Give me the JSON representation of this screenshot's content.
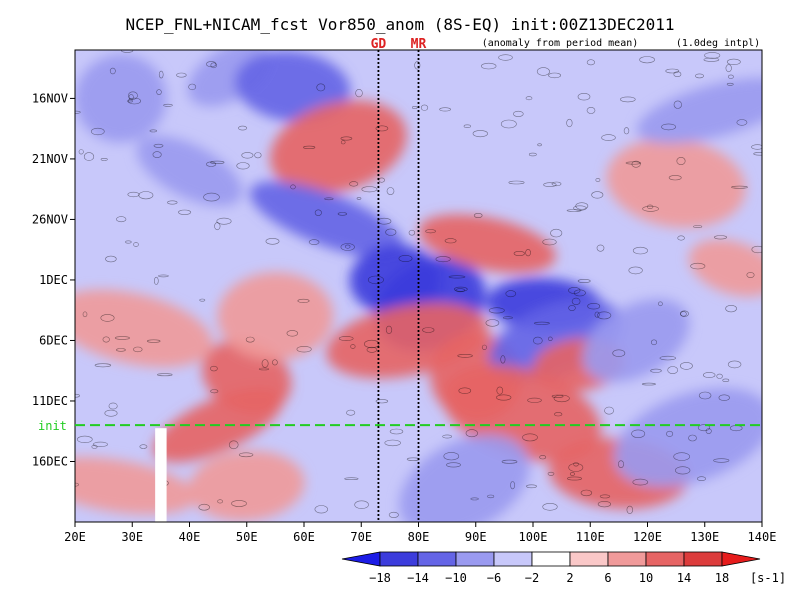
{
  "chart_data": {
    "type": "heatmap",
    "title": "NCEP_FNL+NICAM_fcst Vor850_anom (8S-EQ) init:00Z13DEC2011",
    "subtitle_left": "(anomaly from period mean)",
    "subtitle_right": "(1.0deg intpl)",
    "x_axis": {
      "range": [
        20,
        140
      ],
      "ticks": [
        20,
        30,
        40,
        50,
        60,
        70,
        80,
        90,
        100,
        110,
        120,
        130,
        140
      ],
      "tick_labels": [
        "20E",
        "30E",
        "40E",
        "50E",
        "60E",
        "70E",
        "80E",
        "90E",
        "100E",
        "110E",
        "120E",
        "130E",
        "140E"
      ]
    },
    "y_axis": {
      "range_days_from_start": [
        0,
        39
      ],
      "start": "12NOV",
      "ticks": [
        {
          "label": "16NOV",
          "date": "16NOV"
        },
        {
          "label": "21NOV",
          "date": "21NOV"
        },
        {
          "label": "26NOV",
          "date": "26NOV"
        },
        {
          "label": "1DEC",
          "date": "1DEC"
        },
        {
          "label": "6DEC",
          "date": "6DEC"
        },
        {
          "label": "11DEC",
          "date": "11DEC"
        },
        {
          "label": "16DEC",
          "date": "16DEC"
        }
      ]
    },
    "init_line": {
      "label": "init",
      "date": "13DEC",
      "color": "#22cc22"
    },
    "vertical_markers": [
      {
        "label": "GD",
        "lon": 73
      },
      {
        "label": "MR",
        "lon": 80
      }
    ],
    "colorbar": {
      "unit": "[s-1]",
      "levels": [
        -18,
        -14,
        -10,
        -6,
        -2,
        2,
        6,
        10,
        14,
        18
      ],
      "level_labels": [
        "−18",
        "−14",
        "−10",
        "−6",
        "−2",
        "2",
        "6",
        "10",
        "14",
        "18"
      ],
      "colors": [
        "#1c1ce6",
        "#3c3cdc",
        "#6464e6",
        "#9a9af0",
        "#c8c8fa",
        "#ffffff",
        "#fac8c8",
        "#f09a9a",
        "#e66464",
        "#dc3c3c",
        "#e61c1c"
      ]
    },
    "missing_band_lon": [
      34,
      36
    ],
    "blobs": [
      {
        "lon": 47,
        "day": 2,
        "value": -9
      },
      {
        "lon": 58,
        "day": 3,
        "value": -12
      },
      {
        "lon": 66,
        "day": 8,
        "value": 13
      },
      {
        "lon": 64,
        "day": 14,
        "value": -11
      },
      {
        "lon": 76,
        "day": 19,
        "value": -15
      },
      {
        "lon": 82,
        "day": 21,
        "value": -17
      },
      {
        "lon": 92,
        "day": 16,
        "value": 12
      },
      {
        "lon": 78,
        "day": 24,
        "value": 12
      },
      {
        "lon": 90,
        "day": 27,
        "value": 10
      },
      {
        "lon": 102,
        "day": 21,
        "value": -16
      },
      {
        "lon": 104,
        "day": 24,
        "value": -11
      },
      {
        "lon": 98,
        "day": 30,
        "value": 13
      },
      {
        "lon": 108,
        "day": 26,
        "value": 11
      },
      {
        "lon": 118,
        "day": 24,
        "value": -9
      },
      {
        "lon": 125,
        "day": 11,
        "value": 9
      },
      {
        "lon": 132,
        "day": 5,
        "value": -8
      },
      {
        "lon": 50,
        "day": 27,
        "value": 13
      },
      {
        "lon": 55,
        "day": 22,
        "value": 9
      },
      {
        "lon": 45,
        "day": 31,
        "value": 11
      },
      {
        "lon": 30,
        "day": 23,
        "value": 6
      },
      {
        "lon": 28,
        "day": 4,
        "value": -8
      },
      {
        "lon": 40,
        "day": 10,
        "value": -7
      },
      {
        "lon": 115,
        "day": 35,
        "value": 12
      },
      {
        "lon": 128,
        "day": 32,
        "value": -10
      },
      {
        "lon": 135,
        "day": 18,
        "value": 7
      },
      {
        "lon": 50,
        "day": 36,
        "value": 9
      },
      {
        "lon": 88,
        "day": 36,
        "value": -9
      },
      {
        "lon": 27,
        "day": 36,
        "value": 8
      }
    ]
  }
}
